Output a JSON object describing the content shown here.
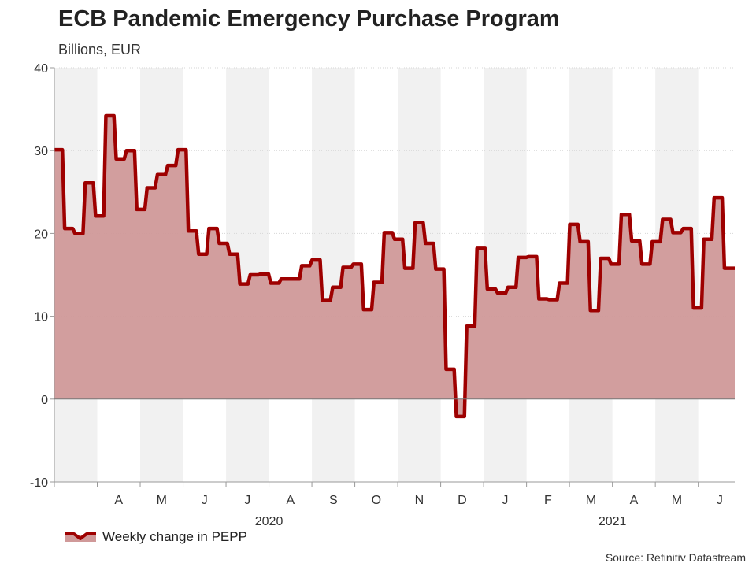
{
  "chart_data": {
    "type": "area",
    "title": "ECB Pandemic Emergency Purchase Program",
    "subtitle": "Billions, EUR",
    "ylim": [
      -10,
      40
    ],
    "yticks": [
      -10,
      0,
      10,
      20,
      30,
      40
    ],
    "x_start_month": "2020-03",
    "x_end_months": 15.85,
    "months": [
      "A",
      "M",
      "J",
      "J",
      "A",
      "S",
      "O",
      "N",
      "D",
      "J",
      "F",
      "M",
      "A",
      "M",
      "J"
    ],
    "years": [
      {
        "label": "2020",
        "center_month": 4.5
      },
      {
        "label": "2021",
        "center_month": 12.5
      }
    ],
    "series": [
      {
        "name": "Weekly change in PEPP",
        "color": "#9e0000",
        "fill": "#d09999",
        "values": [
          30.1,
          20.6,
          20.0,
          26.1,
          22.1,
          34.2,
          29.0,
          30.0,
          22.9,
          25.5,
          27.1,
          28.2,
          30.1,
          20.3,
          17.5,
          20.6,
          18.8,
          17.5,
          13.9,
          15.0,
          15.1,
          14.0,
          14.5,
          14.5,
          16.1,
          16.8,
          11.9,
          13.5,
          15.9,
          16.3,
          10.8,
          14.1,
          20.1,
          19.3,
          15.8,
          21.3,
          18.8,
          15.7,
          3.6,
          -2.1,
          8.8,
          18.2,
          13.3,
          12.8,
          13.5,
          17.1,
          17.2,
          12.1,
          12.0,
          14.0,
          21.1,
          19.0,
          10.7,
          17.0,
          16.3,
          22.3,
          19.1,
          16.3,
          19.0,
          21.7,
          20.1,
          20.6,
          11.0,
          19.3,
          24.3,
          15.8
        ]
      }
    ]
  },
  "legend": {
    "label": "Weekly change in PEPP"
  },
  "source": "Source: Refinitiv Datastream",
  "colors": {
    "line": "#9e0000",
    "area": "#d09999",
    "band": "#f1f1f1"
  }
}
